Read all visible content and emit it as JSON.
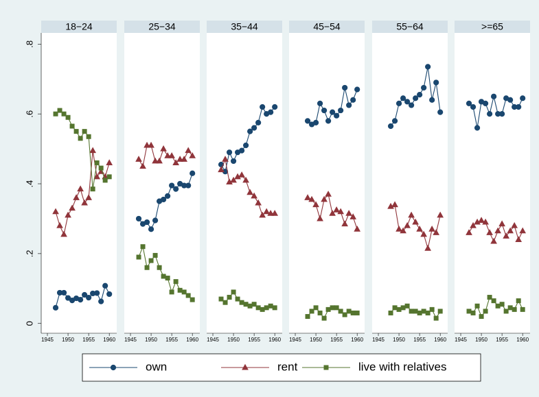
{
  "chart_data": [
    {
      "type": "line",
      "title": "18−24",
      "x": [
        1947,
        1948,
        1949,
        1950,
        1951,
        1952,
        1953,
        1954,
        1955,
        1956,
        1957,
        1958,
        1959,
        1960
      ],
      "series": [
        {
          "name": "own",
          "color": "#1a476f",
          "marker": "circle",
          "values": [
            0.045,
            0.088,
            0.088,
            0.073,
            0.066,
            0.072,
            0.068,
            0.082,
            0.074,
            0.086,
            0.087,
            0.063,
            0.108,
            0.084
          ]
        },
        {
          "name": "rent",
          "color": "#90353b",
          "marker": "triangle",
          "values": [
            0.32,
            0.28,
            0.255,
            0.31,
            0.33,
            0.36,
            0.385,
            0.345,
            0.36,
            0.495,
            0.42,
            0.435,
            0.42,
            0.46
          ]
        },
        {
          "name": "live with relatives",
          "color": "#55752f",
          "marker": "square",
          "values": [
            0.6,
            0.61,
            0.6,
            0.59,
            0.565,
            0.55,
            0.53,
            0.55,
            0.535,
            0.385,
            0.46,
            0.445,
            0.41,
            0.42
          ]
        }
      ],
      "xlim": [
        1943.5,
        1961.8
      ],
      "xticks": [
        1945,
        1950,
        1955,
        1960
      ],
      "ylim": [
        -0.028,
        0.832
      ],
      "yticks": [
        0,
        {
          "value": 0.2,
          "label": ".2"
        },
        {
          "value": 0.4,
          "label": ".4"
        },
        {
          "value": 0.6,
          "label": ".6"
        },
        {
          "value": 0.8,
          "label": ".8"
        }
      ]
    },
    {
      "type": "line",
      "title": "25−34",
      "x": [
        1947,
        1948,
        1949,
        1950,
        1951,
        1952,
        1953,
        1954,
        1955,
        1956,
        1957,
        1958,
        1959,
        1960
      ],
      "series": [
        {
          "color": "#1a476f",
          "marker": "circle",
          "values": [
            0.3,
            0.285,
            0.29,
            0.27,
            0.295,
            0.35,
            0.355,
            0.365,
            0.395,
            0.385,
            0.4,
            0.395,
            0.395,
            0.43
          ]
        },
        {
          "color": "#90353b",
          "marker": "triangle",
          "values": [
            0.47,
            0.45,
            0.51,
            0.51,
            0.465,
            0.465,
            0.5,
            0.48,
            0.48,
            0.46,
            0.47,
            0.47,
            0.495,
            0.48
          ]
        },
        {
          "color": "#55752f",
          "marker": "square",
          "values": [
            0.19,
            0.22,
            0.16,
            0.18,
            0.195,
            0.16,
            0.135,
            0.13,
            0.09,
            0.12,
            0.095,
            0.09,
            0.08,
            0.068
          ]
        }
      ],
      "xlim": [
        1943.5,
        1961.8
      ],
      "xticks": [
        1945,
        1950,
        1955,
        1960
      ],
      "ylim": [
        -0.028,
        0.832
      ]
    },
    {
      "type": "line",
      "title": "35−44",
      "x": [
        1947,
        1948,
        1949,
        1950,
        1951,
        1952,
        1953,
        1954,
        1955,
        1956,
        1957,
        1958,
        1959,
        1960
      ],
      "series": [
        {
          "color": "#1a476f",
          "marker": "circle",
          "values": [
            0.455,
            0.435,
            0.49,
            0.465,
            0.49,
            0.495,
            0.51,
            0.55,
            0.56,
            0.575,
            0.62,
            0.6,
            0.605,
            0.62
          ]
        },
        {
          "color": "#90353b",
          "marker": "triangle",
          "values": [
            0.44,
            0.47,
            0.405,
            0.41,
            0.42,
            0.425,
            0.41,
            0.375,
            0.365,
            0.345,
            0.31,
            0.32,
            0.315,
            0.315
          ]
        },
        {
          "color": "#55752f",
          "marker": "square",
          "values": [
            0.07,
            0.06,
            0.075,
            0.09,
            0.07,
            0.06,
            0.055,
            0.05,
            0.055,
            0.045,
            0.04,
            0.045,
            0.05,
            0.045
          ]
        }
      ],
      "xlim": [
        1943.5,
        1961.8
      ],
      "xticks": [
        1945,
        1950,
        1955,
        1960
      ],
      "ylim": [
        -0.028,
        0.832
      ]
    },
    {
      "type": "line",
      "title": "45−54",
      "x": [
        1948,
        1949,
        1950,
        1951,
        1952,
        1953,
        1954,
        1955,
        1956,
        1957,
        1958,
        1959,
        1960
      ],
      "series": [
        {
          "color": "#1a476f",
          "marker": "circle",
          "values": [
            0.58,
            0.57,
            0.575,
            0.63,
            0.61,
            0.58,
            0.605,
            0.595,
            0.61,
            0.675,
            0.625,
            0.64,
            0.67
          ]
        },
        {
          "color": "#90353b",
          "marker": "triangle",
          "values": [
            0.36,
            0.355,
            0.34,
            0.3,
            0.355,
            0.37,
            0.315,
            0.325,
            0.32,
            0.285,
            0.315,
            0.305,
            0.27
          ]
        },
        {
          "color": "#55752f",
          "marker": "square",
          "values": [
            0.02,
            0.035,
            0.045,
            0.03,
            0.015,
            0.04,
            0.045,
            0.045,
            0.035,
            0.025,
            0.035,
            0.03,
            0.03
          ]
        }
      ],
      "xlim": [
        1943.5,
        1961.8
      ],
      "xticks": [
        1945,
        1950,
        1955,
        1960
      ],
      "ylim": [
        -0.028,
        0.832
      ]
    },
    {
      "type": "line",
      "title": "55−64",
      "x": [
        1948,
        1949,
        1950,
        1951,
        1952,
        1953,
        1954,
        1955,
        1956,
        1957,
        1958,
        1959,
        1960
      ],
      "series": [
        {
          "color": "#1a476f",
          "marker": "circle",
          "values": [
            0.565,
            0.58,
            0.63,
            0.645,
            0.635,
            0.625,
            0.645,
            0.655,
            0.675,
            0.735,
            0.64,
            0.69,
            0.605
          ]
        },
        {
          "color": "#90353b",
          "marker": "triangle",
          "values": [
            0.335,
            0.34,
            0.27,
            0.265,
            0.28,
            0.31,
            0.29,
            0.27,
            0.255,
            0.215,
            0.27,
            0.26,
            0.31
          ]
        },
        {
          "color": "#55752f",
          "marker": "square",
          "values": [
            0.03,
            0.045,
            0.04,
            0.045,
            0.05,
            0.035,
            0.035,
            0.03,
            0.035,
            0.03,
            0.04,
            0.015,
            0.035
          ]
        }
      ],
      "xlim": [
        1943.5,
        1961.8
      ],
      "xticks": [
        1945,
        1950,
        1955,
        1960
      ],
      "ylim": [
        -0.028,
        0.832
      ]
    },
    {
      "type": "line",
      "title": ">=65",
      "x": [
        1947,
        1948,
        1949,
        1950,
        1951,
        1952,
        1953,
        1954,
        1955,
        1956,
        1957,
        1958,
        1959,
        1960
      ],
      "series": [
        {
          "color": "#1a476f",
          "marker": "circle",
          "values": [
            0.63,
            0.62,
            0.56,
            0.635,
            0.63,
            0.6,
            0.65,
            0.6,
            0.6,
            0.645,
            0.64,
            0.62,
            0.62,
            0.645
          ]
        },
        {
          "color": "#90353b",
          "marker": "triangle",
          "values": [
            0.26,
            0.28,
            0.29,
            0.295,
            0.29,
            0.26,
            0.235,
            0.265,
            0.285,
            0.25,
            0.265,
            0.28,
            0.24,
            0.265
          ]
        },
        {
          "color": "#55752f",
          "marker": "square",
          "values": [
            0.035,
            0.03,
            0.05,
            0.02,
            0.035,
            0.075,
            0.065,
            0.05,
            0.055,
            0.035,
            0.045,
            0.04,
            0.065,
            0.04
          ]
        }
      ],
      "xlim": [
        1943.5,
        1961.8
      ],
      "xticks": [
        1945,
        1950,
        1955,
        1960
      ],
      "ylim": [
        -0.028,
        0.832
      ]
    }
  ]
}
